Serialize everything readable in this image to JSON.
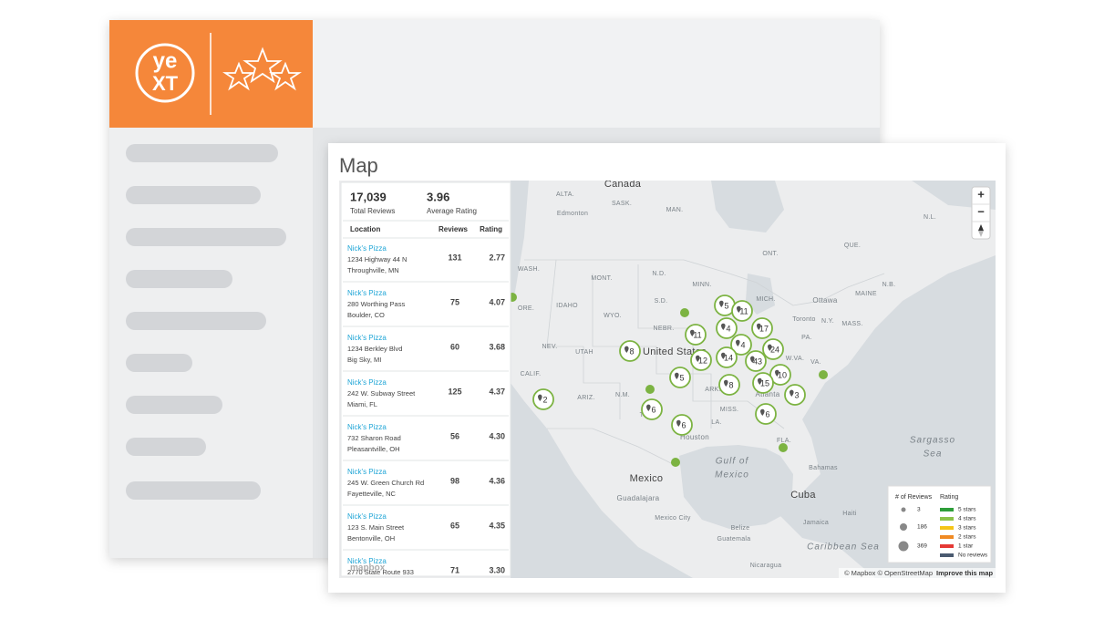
{
  "brand": {
    "logo_top": "ye",
    "logo_bottom": "XT"
  },
  "panel": {
    "title": "Map"
  },
  "summary": {
    "total": "17,039",
    "total_label": "Total Reviews",
    "average": "3.96",
    "average_label": "Average Rating"
  },
  "table": {
    "columns": [
      "Location",
      "Reviews",
      "Rating"
    ],
    "rows": [
      {
        "name": "Nick's Pizza",
        "address": "1234 Highway 44 N",
        "city": "Throughville, MN",
        "reviews": "131",
        "rating": "2.77"
      },
      {
        "name": "Nick's Pizza",
        "address": "280 Worthing Pass",
        "city": "Boulder, CO",
        "reviews": "75",
        "rating": "4.07"
      },
      {
        "name": "Nick's Pizza",
        "address": "1234 Berkley Blvd",
        "city": "Big Sky, MI",
        "reviews": "60",
        "rating": "3.68"
      },
      {
        "name": "Nick's Pizza",
        "address": "242 W. Subway Street",
        "city": "Miami, FL",
        "reviews": "125",
        "rating": "4.37"
      },
      {
        "name": "Nick's Pizza",
        "address": "732 Sharon Road",
        "city": "Pleasantville, OH",
        "reviews": "56",
        "rating": "4.30"
      },
      {
        "name": "Nick's Pizza",
        "address": "245 W. Green Church Rd",
        "city": "Fayetteville, NC",
        "reviews": "98",
        "rating": "4.36"
      },
      {
        "name": "Nick's Pizza",
        "address": "123 S. Main Street",
        "city": "Bentonville, OH",
        "reviews": "65",
        "rating": "4.35"
      },
      {
        "name": "Nick's Pizza",
        "address": "2770 State Route 933",
        "city": "",
        "reviews": "71",
        "rating": "3.30"
      }
    ]
  },
  "map": {
    "labels": [
      "Canada",
      "ALTA.",
      "SASK.",
      "Edmonton",
      "MAN.",
      "N.L.",
      "ONT.",
      "QUE.",
      "WASH.",
      "MONT.",
      "N.D.",
      "MINN.",
      "S.D.",
      "IDAHO",
      "ORE.",
      "WYO.",
      "MICH.",
      "Ottawa",
      "MAINE",
      "N.B.",
      "NEBR.",
      "Toronto",
      "N.Y.",
      "MASS.",
      "NEV.",
      "UTAH",
      "United States",
      "PA.",
      "W.VA.",
      "VA.",
      "CALIF.",
      "ARIZ.",
      "N.M.",
      "ARK.",
      "MISS.",
      "Atlanta",
      "TEX.",
      "LA.",
      "Houston",
      "FLA.",
      "Gulf of",
      "Mexico",
      "Sargasso",
      "Sea",
      "Bahamas",
      "Mexico",
      "Guadalajara",
      "Cuba",
      "Mexico City",
      "Haiti",
      "Jamaica",
      "Belize",
      "Guatemala",
      "Caribbean Sea",
      "Nicaragua"
    ],
    "clusters": [
      "5",
      "11",
      "11",
      "4",
      "17",
      "4",
      "24",
      "8",
      "12",
      "14",
      "43",
      "5",
      "10",
      "8",
      "15",
      "3",
      "2",
      "6",
      "6",
      "6"
    ],
    "zoom_in": "+",
    "zoom_out": "−",
    "legend": {
      "size_title": "# of Reviews",
      "rating_title": "Rating",
      "sizes": [
        "3",
        "186",
        "369"
      ],
      "ratings": [
        "5 stars",
        "4 stars",
        "3 stars",
        "2 stars",
        "1 star",
        "No reviews"
      ]
    },
    "attribution": "© Mapbox © OpenStreetMap",
    "improve": "Improve this map",
    "mapbox": "mapbox"
  }
}
